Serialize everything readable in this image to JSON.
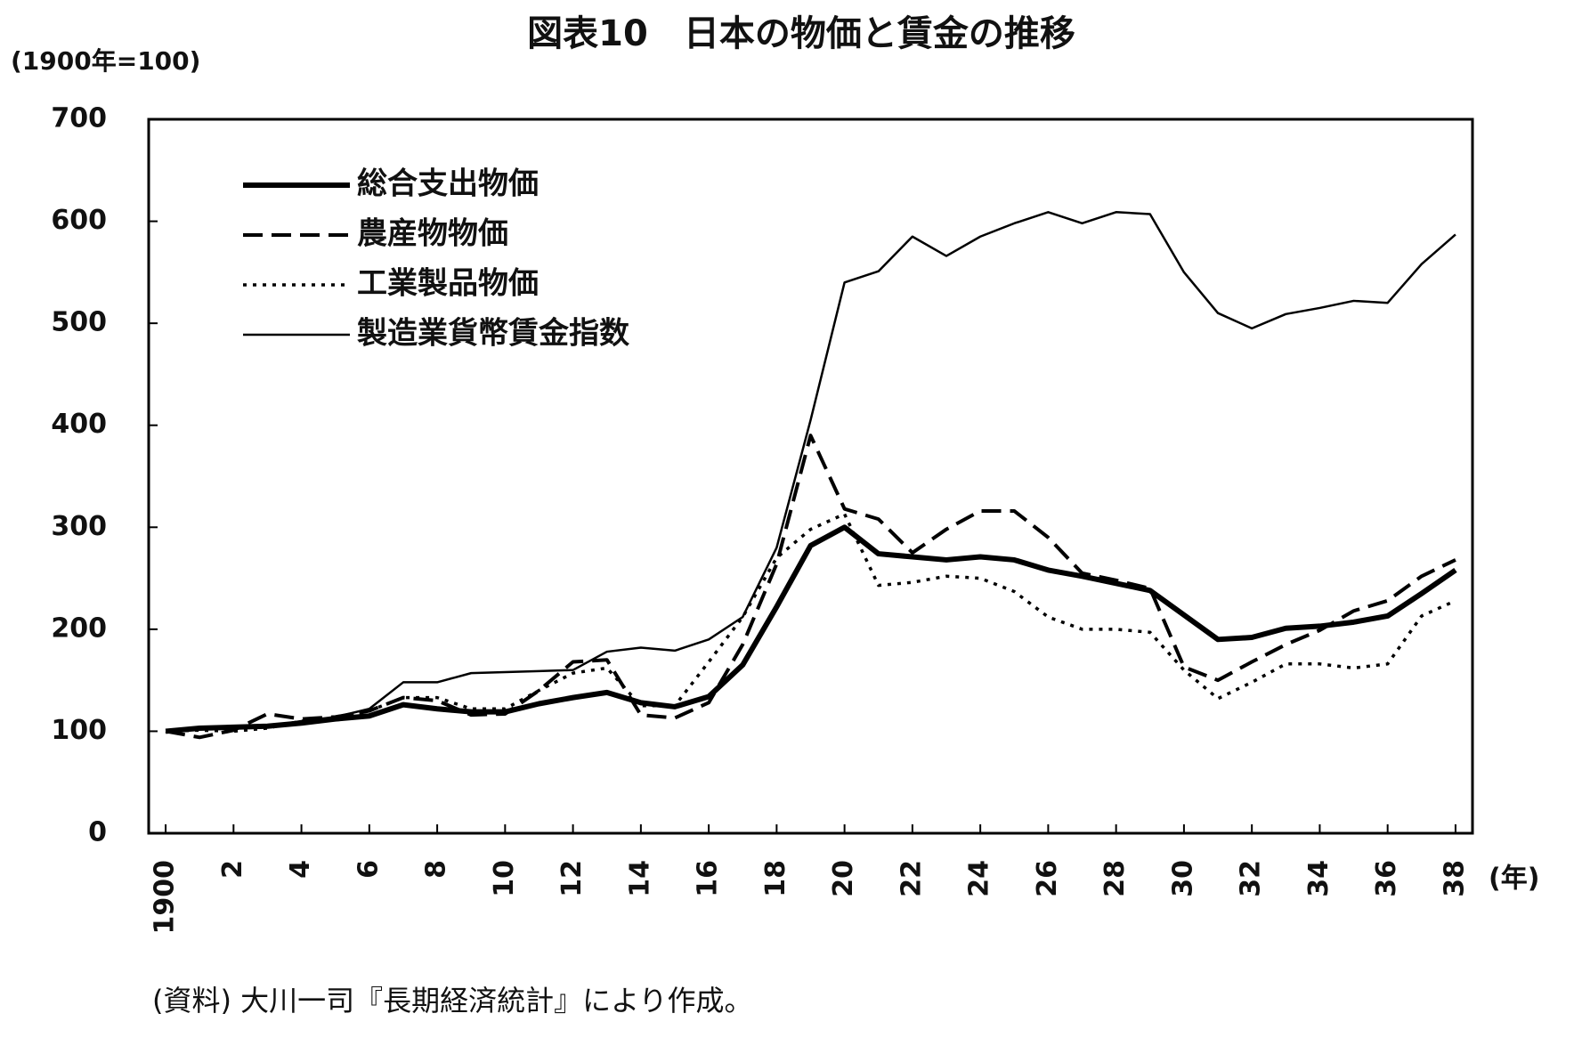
{
  "chart_data": {
    "type": "line",
    "title": "図表10　日本の物価と賃金の推移",
    "y_label": "(1900年=100)",
    "x_label": "(年)",
    "source": "(資料) 大川一司『長期経済統計』により作成。",
    "x": [
      1900,
      1901,
      1902,
      1903,
      1904,
      1905,
      1906,
      1907,
      1908,
      1909,
      1910,
      1911,
      1912,
      1913,
      1914,
      1915,
      1916,
      1917,
      1918,
      1919,
      1920,
      1921,
      1922,
      1923,
      1924,
      1925,
      1926,
      1927,
      1928,
      1929,
      1930,
      1931,
      1932,
      1933,
      1934,
      1935,
      1936,
      1937,
      1938
    ],
    "series": [
      {
        "name": "総合支出物価",
        "color": "#000000",
        "style": "thick",
        "values": [
          100,
          103,
          104,
          105,
          108,
          112,
          115,
          126,
          122,
          119,
          119,
          127,
          133,
          138,
          128,
          124,
          134,
          165,
          222,
          282,
          300,
          274,
          271,
          268,
          271,
          268,
          258,
          252,
          245,
          238,
          214,
          190,
          192,
          201,
          203,
          207,
          213,
          235,
          258
        ]
      },
      {
        "name": "農産物物価",
        "color": "#000000",
        "style": "dashed",
        "values": [
          100,
          94,
          101,
          117,
          112,
          114,
          120,
          133,
          130,
          116,
          117,
          140,
          168,
          170,
          116,
          113,
          128,
          185,
          264,
          390,
          318,
          308,
          275,
          298,
          316,
          316,
          290,
          255,
          248,
          240,
          163,
          150,
          168,
          185,
          199,
          218,
          228,
          252,
          268
        ]
      },
      {
        "name": "工業製品物価",
        "color": "#000000",
        "style": "dotted",
        "values": [
          100,
          101,
          100,
          103,
          110,
          112,
          120,
          133,
          133,
          122,
          122,
          140,
          157,
          162,
          125,
          125,
          168,
          212,
          270,
          298,
          313,
          243,
          246,
          252,
          250,
          237,
          212,
          200,
          200,
          197,
          160,
          132,
          148,
          166,
          166,
          162,
          166,
          213,
          228
        ]
      },
      {
        "name": "製造業貨幣賃金指数",
        "color": "#000000",
        "style": "thin",
        "values": [
          100,
          102,
          103,
          105,
          110,
          114,
          122,
          148,
          148,
          157,
          158,
          159,
          160,
          178,
          182,
          179,
          190,
          212,
          280,
          405,
          540,
          551,
          585,
          566,
          585,
          598,
          609,
          598,
          609,
          607,
          550,
          510,
          495,
          509,
          515,
          522,
          520,
          558,
          587
        ]
      }
    ],
    "xlim": [
      1899.5,
      1938.5
    ],
    "xticks": [
      1900,
      {
        "value": 1902,
        "label": "2"
      },
      {
        "value": 1904,
        "label": "4"
      },
      {
        "value": 1906,
        "label": "6"
      },
      {
        "value": 1908,
        "label": "8"
      },
      {
        "value": 1910,
        "label": "10"
      },
      {
        "value": 1912,
        "label": "12"
      },
      {
        "value": 1914,
        "label": "14"
      },
      {
        "value": 1916,
        "label": "16"
      },
      {
        "value": 1918,
        "label": "18"
      },
      {
        "value": 1920,
        "label": "20"
      },
      {
        "value": 1922,
        "label": "22"
      },
      {
        "value": 1924,
        "label": "24"
      },
      {
        "value": 1926,
        "label": "26"
      },
      {
        "value": 1928,
        "label": "28"
      },
      {
        "value": 1930,
        "label": "30"
      },
      {
        "value": 1932,
        "label": "32"
      },
      {
        "value": 1934,
        "label": "34"
      },
      {
        "value": 1936,
        "label": "36"
      },
      {
        "value": 1938,
        "label": "38"
      }
    ],
    "ylim": [
      0,
      700
    ],
    "yticks": [
      0,
      100,
      200,
      300,
      400,
      500,
      600,
      700
    ],
    "legend": "upper left"
  }
}
